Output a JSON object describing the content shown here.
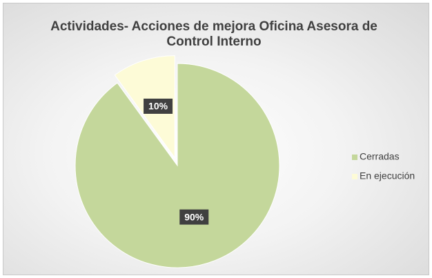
{
  "chart_data": {
    "type": "pie",
    "title": "Actividades- Acciones de mejora Oficina Asesora de Control Interno",
    "categories": [
      "Cerradas",
      "En ejecución"
    ],
    "values": [
      90,
      10
    ],
    "value_labels": [
      "90%",
      "10%"
    ],
    "colors": [
      "#c4d79b",
      "#fdfbd7"
    ],
    "legend": "right"
  }
}
